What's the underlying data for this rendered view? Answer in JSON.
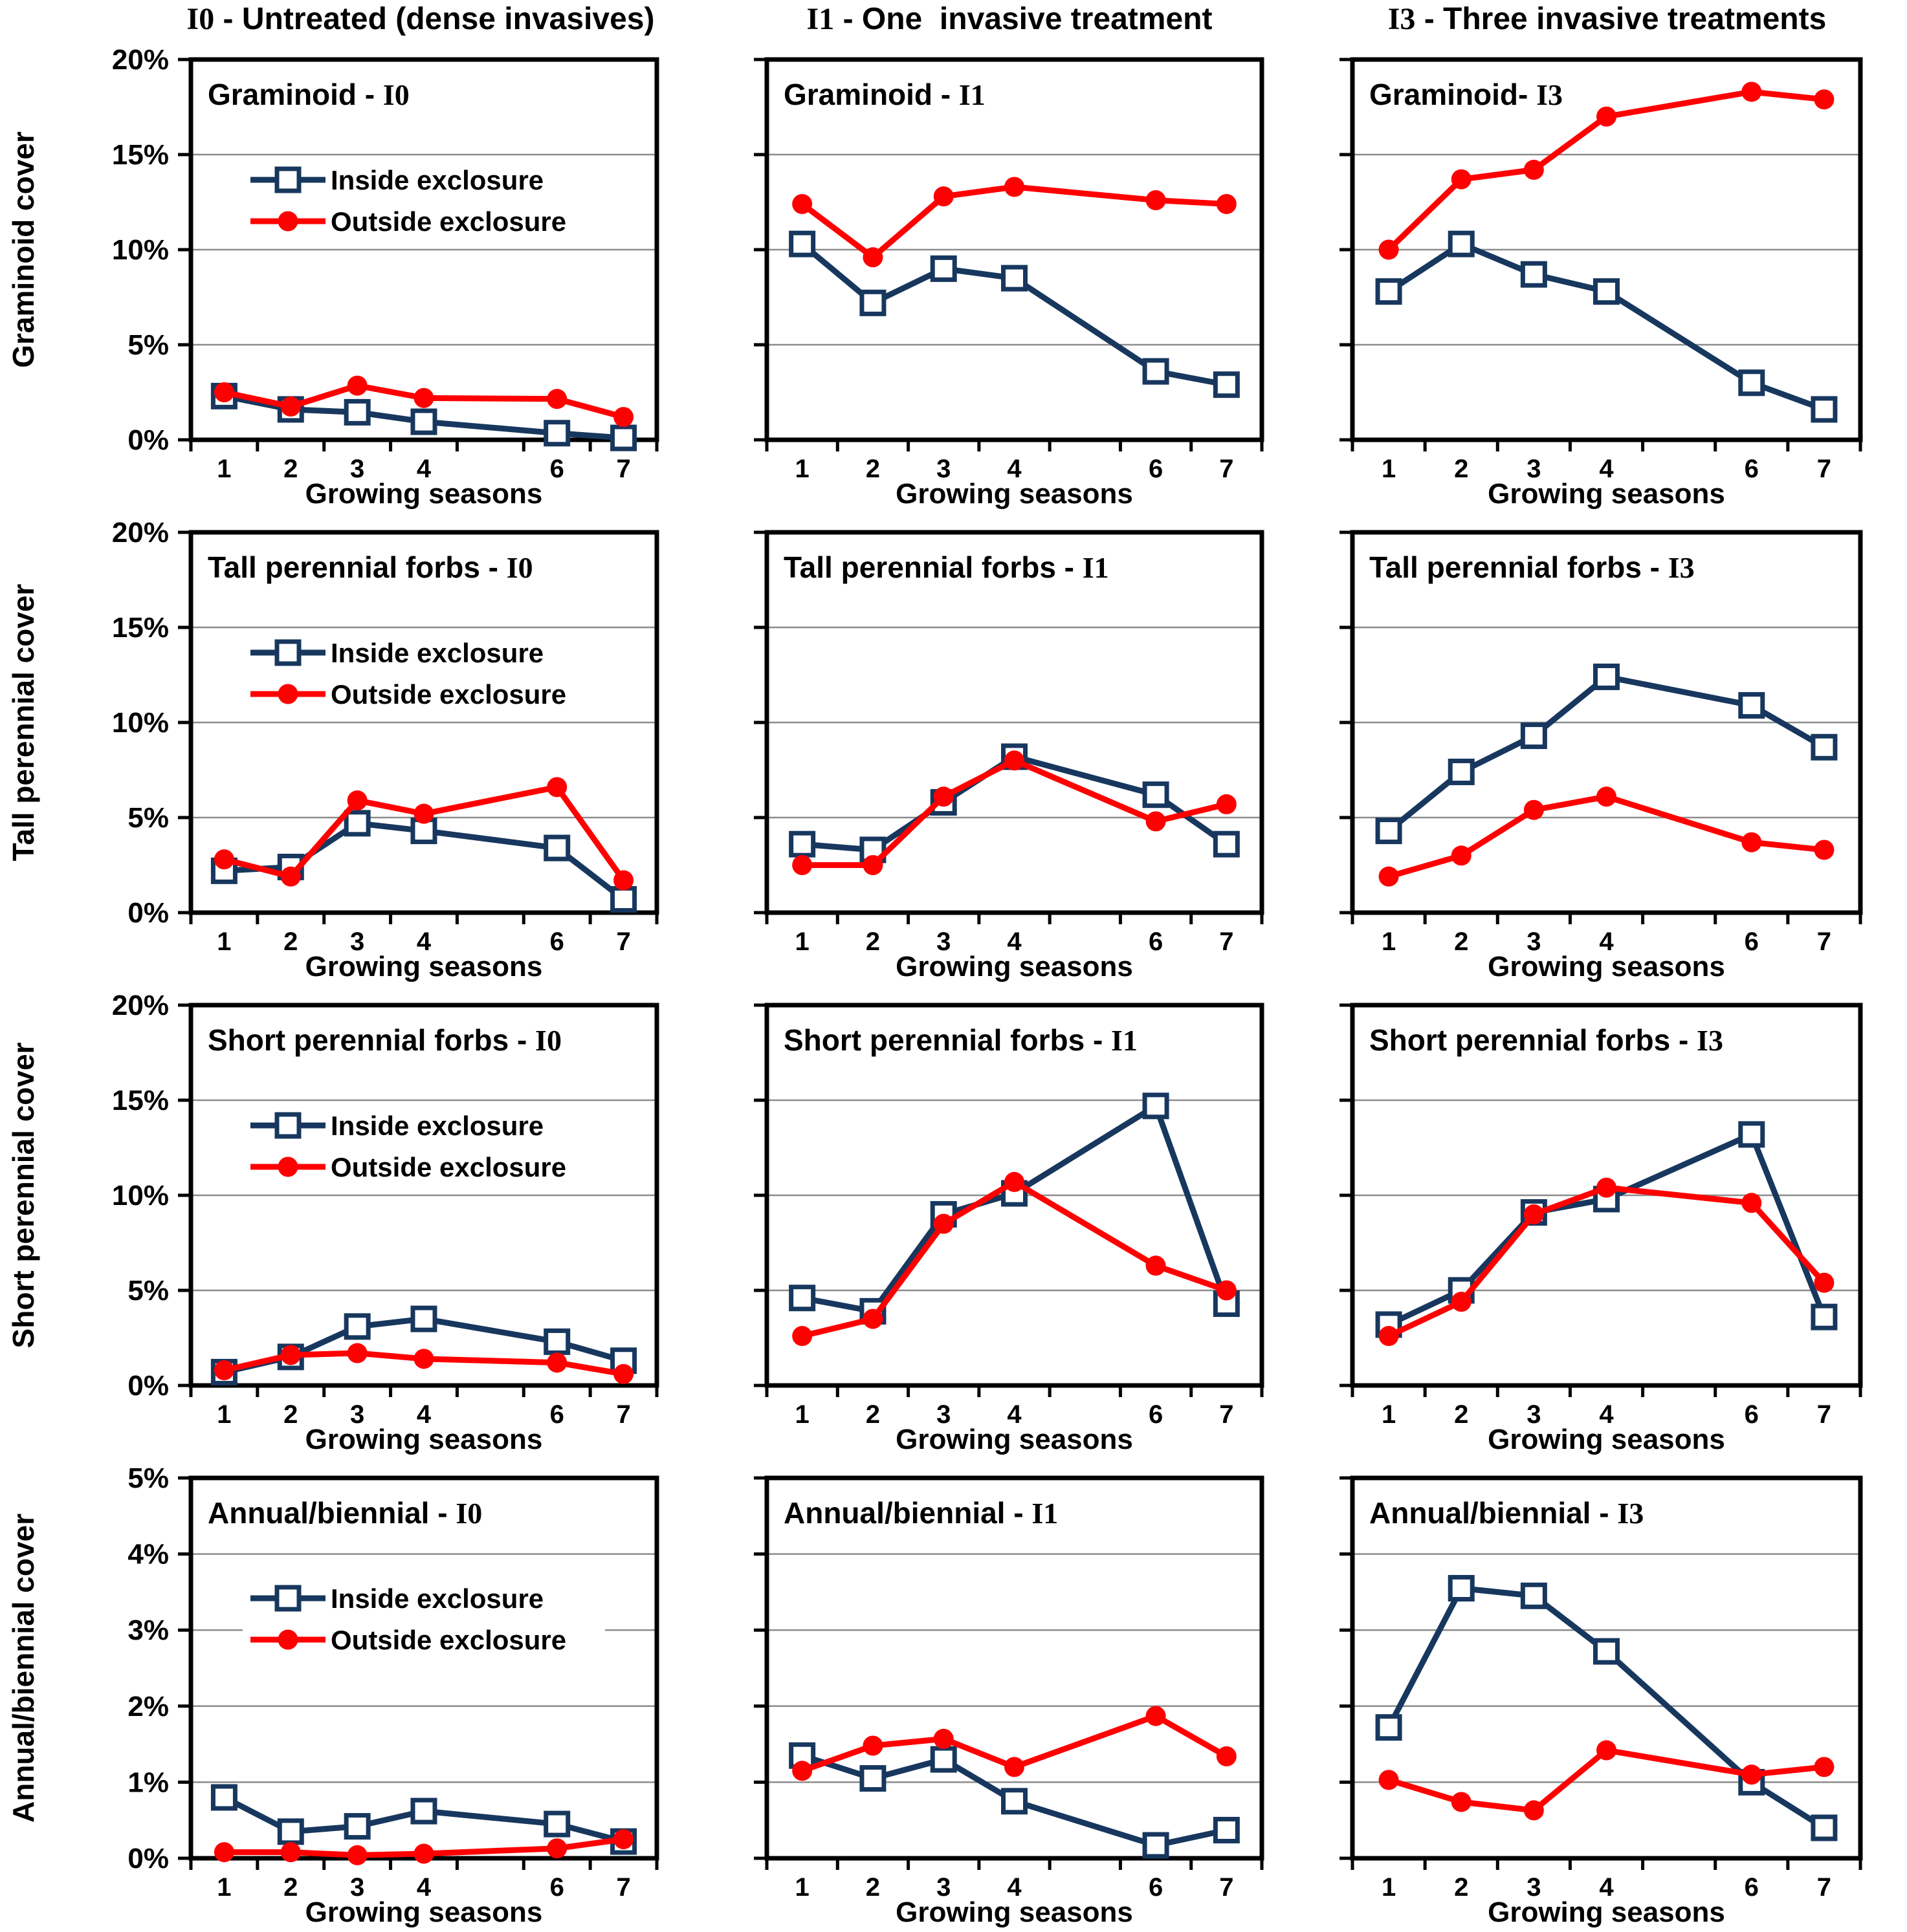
{
  "colors": {
    "inside": "#17375E",
    "outside": "#FF0000",
    "grid": "#8C8C8C",
    "axis": "#000000",
    "background": "#FFFFFF",
    "marker_fill": "#FFFFFF"
  },
  "chart_data": {
    "type": "line",
    "x_label": "Growing seasons",
    "x_slot_labels": [
      "1",
      "2",
      "3",
      "4",
      "",
      "6",
      "7"
    ],
    "x_values": [
      1,
      2,
      3,
      4,
      6,
      7
    ],
    "x_slots": 7,
    "series_legend": [
      "Inside exclosure",
      "Outside exclosure"
    ],
    "columns": [
      {
        "code": "I0",
        "title": " - Untreated (dense invasives)"
      },
      {
        "code": "I1",
        "title": " - One  invasive treatment"
      },
      {
        "code": "I3",
        "title": " - Three invasive treatments"
      }
    ],
    "y_rows": [
      {
        "y_axis_label": "Graminoid cover",
        "y_max": 20,
        "y_ticks": [
          0,
          5,
          10,
          15,
          20
        ],
        "y_tick_labels": [
          "0%",
          "5%",
          "10%",
          "15%",
          "20%"
        ],
        "gridlines": [
          5,
          10,
          15
        ]
      },
      {
        "y_axis_label": "Tall perennial cover",
        "y_max": 20,
        "y_ticks": [
          0,
          5,
          10,
          15,
          20
        ],
        "y_tick_labels": [
          "0%",
          "5%",
          "10%",
          "15%",
          "20%"
        ],
        "gridlines": [
          5,
          10,
          15
        ]
      },
      {
        "y_axis_label": "Short perennial cover",
        "y_max": 20,
        "y_ticks": [
          0,
          5,
          10,
          15,
          20
        ],
        "y_tick_labels": [
          "0%",
          "5%",
          "10%",
          "15%",
          "20%"
        ],
        "gridlines": [
          5,
          10,
          15
        ]
      },
      {
        "y_axis_label": "Annual/biennial cover",
        "y_max": 5,
        "y_ticks": [
          0,
          1,
          2,
          3,
          4,
          5
        ],
        "y_tick_labels": [
          "0%",
          "1%",
          "2%",
          "3%",
          "4%",
          "5%"
        ],
        "gridlines": [
          1,
          2,
          3,
          4
        ]
      }
    ],
    "panels": [
      {
        "row": 0,
        "col": 0,
        "title": "Graminoid -",
        "code": "I0",
        "show_legend": true,
        "show_y_labels": true,
        "series": [
          {
            "name": "Inside exclosure",
            "values": [
              2.3,
              1.6,
              1.45,
              0.95,
              0.35,
              0.1
            ]
          },
          {
            "name": "Outside exclosure",
            "values": [
              2.5,
              1.75,
              2.85,
              2.2,
              2.15,
              1.2
            ]
          }
        ]
      },
      {
        "row": 0,
        "col": 1,
        "title": "Graminoid -",
        "code": "I1",
        "show_legend": false,
        "show_y_labels": false,
        "series": [
          {
            "name": "Inside exclosure",
            "values": [
              10.3,
              7.2,
              9.0,
              8.5,
              3.6,
              2.9
            ]
          },
          {
            "name": "Outside exclosure",
            "values": [
              12.4,
              9.6,
              12.8,
              13.3,
              12.6,
              12.4
            ]
          }
        ]
      },
      {
        "row": 0,
        "col": 2,
        "title": "Graminoid-",
        "code": "I3",
        "show_legend": false,
        "show_y_labels": false,
        "series": [
          {
            "name": "Inside exclosure",
            "values": [
              7.8,
              10.3,
              8.7,
              7.8,
              3.0,
              1.6
            ]
          },
          {
            "name": "Outside exclosure",
            "values": [
              10.0,
              13.7,
              14.2,
              17.0,
              18.3,
              17.9
            ]
          }
        ]
      },
      {
        "row": 1,
        "col": 0,
        "title": "Tall perennial forbs -",
        "code": "I0",
        "show_legend": true,
        "show_y_labels": true,
        "series": [
          {
            "name": "Inside exclosure",
            "values": [
              2.2,
              2.4,
              4.7,
              4.3,
              3.4,
              0.7
            ]
          },
          {
            "name": "Outside exclosure",
            "values": [
              2.8,
              1.9,
              5.9,
              5.2,
              6.6,
              1.7
            ]
          }
        ]
      },
      {
        "row": 1,
        "col": 1,
        "title": "Tall perennial forbs -",
        "code": "I1",
        "show_legend": false,
        "show_y_labels": false,
        "series": [
          {
            "name": "Inside exclosure",
            "values": [
              3.6,
              3.3,
              5.8,
              8.2,
              6.2,
              3.6
            ]
          },
          {
            "name": "Outside exclosure",
            "values": [
              2.5,
              2.5,
              6.1,
              8.0,
              4.8,
              5.7
            ]
          }
        ]
      },
      {
        "row": 1,
        "col": 2,
        "title": "Tall perennial forbs -",
        "code": "I3",
        "show_legend": false,
        "show_y_labels": false,
        "series": [
          {
            "name": "Inside exclosure",
            "values": [
              4.3,
              7.4,
              9.3,
              12.4,
              10.9,
              8.7
            ]
          },
          {
            "name": "Outside exclosure",
            "values": [
              1.9,
              3.0,
              5.4,
              6.1,
              3.7,
              3.3
            ]
          }
        ]
      },
      {
        "row": 2,
        "col": 0,
        "title": "Short perennial forbs -",
        "code": "I0",
        "show_legend": true,
        "show_y_labels": true,
        "series": [
          {
            "name": "Inside exclosure",
            "values": [
              0.7,
              1.5,
              3.1,
              3.5,
              2.3,
              1.3
            ]
          },
          {
            "name": "Outside exclosure",
            "values": [
              0.8,
              1.6,
              1.7,
              1.4,
              1.2,
              0.6
            ]
          }
        ]
      },
      {
        "row": 2,
        "col": 1,
        "title": "Short perennial forbs -",
        "code": "I1",
        "show_legend": false,
        "show_y_labels": false,
        "series": [
          {
            "name": "Inside exclosure",
            "values": [
              4.6,
              3.9,
              9.0,
              10.1,
              14.7,
              4.3
            ]
          },
          {
            "name": "Outside exclosure",
            "values": [
              2.6,
              3.5,
              8.5,
              10.7,
              6.3,
              5.0
            ]
          }
        ]
      },
      {
        "row": 2,
        "col": 2,
        "title": "Short perennial forbs -",
        "code": "I3",
        "show_legend": false,
        "show_y_labels": false,
        "series": [
          {
            "name": "Inside exclosure",
            "values": [
              3.2,
              5.0,
              9.1,
              9.8,
              13.2,
              3.6
            ]
          },
          {
            "name": "Outside exclosure",
            "values": [
              2.6,
              4.4,
              9.0,
              10.4,
              9.6,
              5.4
            ]
          }
        ]
      },
      {
        "row": 3,
        "col": 0,
        "title": "Annual/biennial -",
        "code": "I0",
        "show_legend": true,
        "show_y_labels": true,
        "series": [
          {
            "name": "Inside exclosure",
            "values": [
              0.8,
              0.35,
              0.42,
              0.62,
              0.45,
              0.22
            ]
          },
          {
            "name": "Outside exclosure",
            "values": [
              0.08,
              0.08,
              0.04,
              0.06,
              0.13,
              0.25
            ]
          }
        ]
      },
      {
        "row": 3,
        "col": 1,
        "title": "Annual/biennial -",
        "code": "I1",
        "show_legend": false,
        "show_y_labels": false,
        "series": [
          {
            "name": "Inside exclosure",
            "values": [
              1.35,
              1.05,
              1.3,
              0.75,
              0.17,
              0.37
            ]
          },
          {
            "name": "Outside exclosure",
            "values": [
              1.15,
              1.48,
              1.57,
              1.2,
              1.87,
              1.34
            ]
          }
        ]
      },
      {
        "row": 3,
        "col": 2,
        "title": "Annual/biennial -",
        "code": "I3",
        "show_legend": false,
        "show_y_labels": false,
        "series": [
          {
            "name": "Inside exclosure",
            "values": [
              1.72,
              3.55,
              3.45,
              2.72,
              1.0,
              0.4
            ]
          },
          {
            "name": "Outside exclosure",
            "values": [
              1.03,
              0.74,
              0.63,
              1.42,
              1.1,
              1.2
            ]
          }
        ]
      }
    ]
  }
}
